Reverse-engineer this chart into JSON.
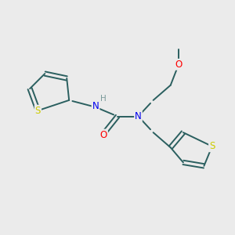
{
  "background_color": "#ebebeb",
  "bond_color": "#2a5f5f",
  "atom_colors": {
    "S": "#cccc00",
    "N": "#0000ee",
    "O": "#ff0000",
    "H": "#7a9a9a",
    "C": "#2a5f5f"
  },
  "bond_lw": 1.4,
  "font_size_atoms": 8.5,
  "font_size_small": 7.5,
  "xlim": [
    0,
    10
  ],
  "ylim": [
    0,
    10
  ]
}
